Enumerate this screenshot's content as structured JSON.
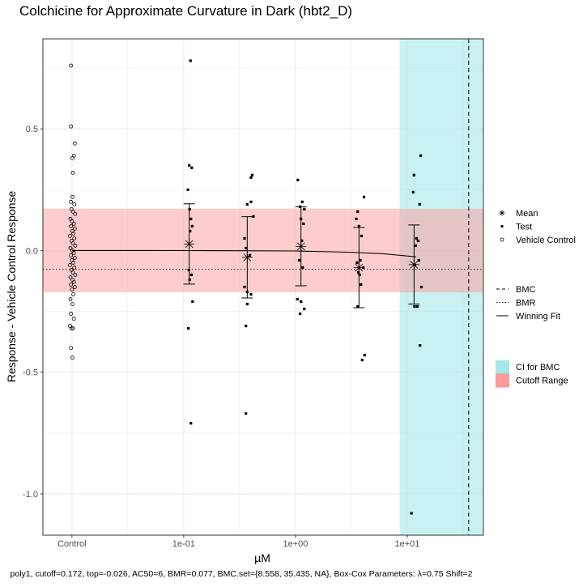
{
  "chart_data": {
    "type": "scatter",
    "title": "Colchicine for Approximate Curvature in Dark (hbt2_D)",
    "xlabel": "µM",
    "ylabel": "Response - Vehicle Control Response",
    "caption": "poly1, cutoff=0.172, top=-0.026, AC50=6, BMR=0.077, BMC.set={8.558, 35.435, NA}, Box-Cox Parameters: λ=0.75 Shift=2",
    "x_scale": "log10",
    "x_ticks": [
      {
        "value": 0.01,
        "label": "Control"
      },
      {
        "value": 0.1,
        "label": "1e-01"
      },
      {
        "value": 1,
        "label": "1e+00"
      },
      {
        "value": 10,
        "label": "1e+01"
      }
    ],
    "y_ticks": [
      {
        "value": 0.5,
        "label": "0.5"
      },
      {
        "value": 0.0,
        "label": "0.0"
      },
      {
        "value": -0.5,
        "label": "-0.5"
      },
      {
        "value": -1.0,
        "label": "-1.0"
      }
    ],
    "xlim": [
      0.0055,
      48
    ],
    "ylim": [
      -1.17,
      0.87
    ],
    "grid": true,
    "legend_position": "right",
    "colors": {
      "panel_border": "#333333",
      "grid": "#ebebeb",
      "cutoff_fill": "#fb9a99",
      "ci_fill": "#a6e7ea",
      "marks": "#000000"
    },
    "legends": [
      {
        "entries": [
          {
            "symbol": "asterisk",
            "label": "Mean"
          },
          {
            "symbol": "dot",
            "label": "Test"
          },
          {
            "symbol": "circle",
            "label": "Vehicle Control"
          }
        ]
      },
      {
        "entries": [
          {
            "symbol": "dashed",
            "label": "BMC"
          },
          {
            "symbol": "dotted",
            "label": "BMR"
          },
          {
            "symbol": "solid",
            "label": "Winning Fit"
          }
        ]
      },
      {
        "entries": [
          {
            "symbol": "fill-ci",
            "label": "CI for BMC"
          },
          {
            "symbol": "fill-cutoff",
            "label": "Cutoff Range"
          }
        ]
      }
    ],
    "cutoff_range": [
      -0.172,
      0.172
    ],
    "ci_bmc": [
      8.558,
      48
    ],
    "bmc": 35.435,
    "bmr_line": -0.077,
    "fit": {
      "model": "poly1",
      "x": [
        0.01,
        0.05,
        0.1,
        0.3,
        1,
        3,
        6,
        12
      ],
      "y": [
        0.0,
        0.0,
        -0.0002,
        -0.0008,
        -0.002,
        -0.007,
        -0.013,
        -0.026
      ]
    },
    "mean_summary": [
      {
        "x": 0.112,
        "mean": 0.027,
        "lower": -0.138,
        "upper": 0.192
      },
      {
        "x": 0.37,
        "mean": -0.028,
        "lower": -0.195,
        "upper": 0.139
      },
      {
        "x": 1.12,
        "mean": 0.017,
        "lower": -0.145,
        "upper": 0.18
      },
      {
        "x": 3.7,
        "mean": -0.07,
        "lower": -0.235,
        "upper": 0.095
      },
      {
        "x": 11.5,
        "mean": -0.058,
        "lower": -0.22,
        "upper": 0.105
      }
    ],
    "vehicle_control": [
      {
        "x": 0.0098,
        "y": 0.76
      },
      {
        "x": 0.0098,
        "y": 0.51
      },
      {
        "x": 0.0106,
        "y": 0.44
      },
      {
        "x": 0.0104,
        "y": 0.39
      },
      {
        "x": 0.0101,
        "y": 0.38
      },
      {
        "x": 0.0102,
        "y": 0.32
      },
      {
        "x": 0.0101,
        "y": 0.22
      },
      {
        "x": 0.0098,
        "y": 0.2
      },
      {
        "x": 0.0105,
        "y": 0.19
      },
      {
        "x": 0.0099,
        "y": 0.17
      },
      {
        "x": 0.0102,
        "y": 0.16
      },
      {
        "x": 0.0107,
        "y": 0.15
      },
      {
        "x": 0.0097,
        "y": 0.13
      },
      {
        "x": 0.01,
        "y": 0.12
      },
      {
        "x": 0.0104,
        "y": 0.11
      },
      {
        "x": 0.0098,
        "y": 0.1
      },
      {
        "x": 0.0106,
        "y": 0.09
      },
      {
        "x": 0.0101,
        "y": 0.08
      },
      {
        "x": 0.0103,
        "y": 0.07
      },
      {
        "x": 0.0096,
        "y": 0.06
      },
      {
        "x": 0.0105,
        "y": 0.05
      },
      {
        "x": 0.0099,
        "y": 0.04
      },
      {
        "x": 0.0102,
        "y": 0.03
      },
      {
        "x": 0.0107,
        "y": 0.02
      },
      {
        "x": 0.0097,
        "y": 0.01
      },
      {
        "x": 0.0101,
        "y": 0.0
      },
      {
        "x": 0.0104,
        "y": -0.01
      },
      {
        "x": 0.0098,
        "y": -0.02
      },
      {
        "x": 0.0106,
        "y": -0.03
      },
      {
        "x": 0.01,
        "y": -0.04
      },
      {
        "x": 0.0103,
        "y": -0.05
      },
      {
        "x": 0.0096,
        "y": -0.06
      },
      {
        "x": 0.0105,
        "y": -0.07
      },
      {
        "x": 0.0099,
        "y": -0.08
      },
      {
        "x": 0.0102,
        "y": -0.09
      },
      {
        "x": 0.0107,
        "y": -0.1
      },
      {
        "x": 0.0097,
        "y": -0.11
      },
      {
        "x": 0.0101,
        "y": -0.12
      },
      {
        "x": 0.0104,
        "y": -0.13
      },
      {
        "x": 0.0098,
        "y": -0.14
      },
      {
        "x": 0.0106,
        "y": -0.15
      },
      {
        "x": 0.01,
        "y": -0.16
      },
      {
        "x": 0.0103,
        "y": -0.18
      },
      {
        "x": 0.0097,
        "y": -0.2
      },
      {
        "x": 0.0101,
        "y": -0.22
      },
      {
        "x": 0.0098,
        "y": -0.26
      },
      {
        "x": 0.0104,
        "y": -0.28
      },
      {
        "x": 0.0096,
        "y": -0.31
      },
      {
        "x": 0.0102,
        "y": -0.32
      },
      {
        "x": 0.0099,
        "y": -0.32
      },
      {
        "x": 0.0098,
        "y": -0.4
      },
      {
        "x": 0.0101,
        "y": -0.44
      }
    ],
    "test_points": [
      {
        "x": 0.115,
        "y": 0.78
      },
      {
        "x": 0.112,
        "y": 0.35
      },
      {
        "x": 0.118,
        "y": 0.34
      },
      {
        "x": 0.109,
        "y": 0.25
      },
      {
        "x": 0.113,
        "y": 0.17
      },
      {
        "x": 0.116,
        "y": 0.13
      },
      {
        "x": 0.119,
        "y": 0.1
      },
      {
        "x": 0.114,
        "y": 0.08
      },
      {
        "x": 0.111,
        "y": -0.08
      },
      {
        "x": 0.117,
        "y": -0.1
      },
      {
        "x": 0.113,
        "y": -0.12
      },
      {
        "x": 0.12,
        "y": -0.21
      },
      {
        "x": 0.11,
        "y": -0.32
      },
      {
        "x": 0.116,
        "y": -0.71
      },
      {
        "x": 0.41,
        "y": 0.31
      },
      {
        "x": 0.4,
        "y": 0.3
      },
      {
        "x": 0.37,
        "y": 0.19
      },
      {
        "x": 0.4,
        "y": 0.2
      },
      {
        "x": 0.42,
        "y": 0.14
      },
      {
        "x": 0.35,
        "y": 0.05
      },
      {
        "x": 0.36,
        "y": 0.01
      },
      {
        "x": 0.39,
        "y": -0.02
      },
      {
        "x": 0.35,
        "y": -0.15
      },
      {
        "x": 0.37,
        "y": -0.17
      },
      {
        "x": 0.4,
        "y": -0.18
      },
      {
        "x": 0.37,
        "y": -0.22
      },
      {
        "x": 0.36,
        "y": -0.31
      },
      {
        "x": 0.36,
        "y": -0.67
      },
      {
        "x": 1.05,
        "y": 0.29
      },
      {
        "x": 1.15,
        "y": 0.2
      },
      {
        "x": 1.1,
        "y": 0.18
      },
      {
        "x": 1.2,
        "y": 0.17
      },
      {
        "x": 1.12,
        "y": 0.13
      },
      {
        "x": 1.18,
        "y": 0.11
      },
      {
        "x": 1.14,
        "y": 0.04
      },
      {
        "x": 1.08,
        "y": -0.04
      },
      {
        "x": 1.16,
        "y": -0.07
      },
      {
        "x": 1.04,
        "y": -0.2
      },
      {
        "x": 1.12,
        "y": -0.21
      },
      {
        "x": 1.2,
        "y": -0.24
      },
      {
        "x": 1.1,
        "y": -0.26
      },
      {
        "x": 4.1,
        "y": 0.22
      },
      {
        "x": 3.6,
        "y": 0.16
      },
      {
        "x": 3.5,
        "y": 0.13
      },
      {
        "x": 3.7,
        "y": 0.1
      },
      {
        "x": 3.9,
        "y": 0.06
      },
      {
        "x": 3.8,
        "y": -0.04
      },
      {
        "x": 3.55,
        "y": -0.05
      },
      {
        "x": 4.05,
        "y": -0.07
      },
      {
        "x": 3.65,
        "y": -0.09
      },
      {
        "x": 3.75,
        "y": -0.1
      },
      {
        "x": 3.85,
        "y": -0.14
      },
      {
        "x": 3.6,
        "y": -0.23
      },
      {
        "x": 4.15,
        "y": -0.43
      },
      {
        "x": 3.95,
        "y": -0.45
      },
      {
        "x": 13.2,
        "y": 0.39
      },
      {
        "x": 11.5,
        "y": 0.31
      },
      {
        "x": 11.3,
        "y": 0.24
      },
      {
        "x": 12.9,
        "y": 0.19
      },
      {
        "x": 12.1,
        "y": 0.05
      },
      {
        "x": 12.5,
        "y": 0.04
      },
      {
        "x": 11.9,
        "y": 0.02
      },
      {
        "x": 12.7,
        "y": -0.04
      },
      {
        "x": 11.7,
        "y": -0.06
      },
      {
        "x": 13.4,
        "y": -0.15
      },
      {
        "x": 11.6,
        "y": -0.23
      },
      {
        "x": 12.3,
        "y": -0.23
      },
      {
        "x": 13.0,
        "y": -0.39
      },
      {
        "x": 10.9,
        "y": -1.08
      }
    ]
  }
}
